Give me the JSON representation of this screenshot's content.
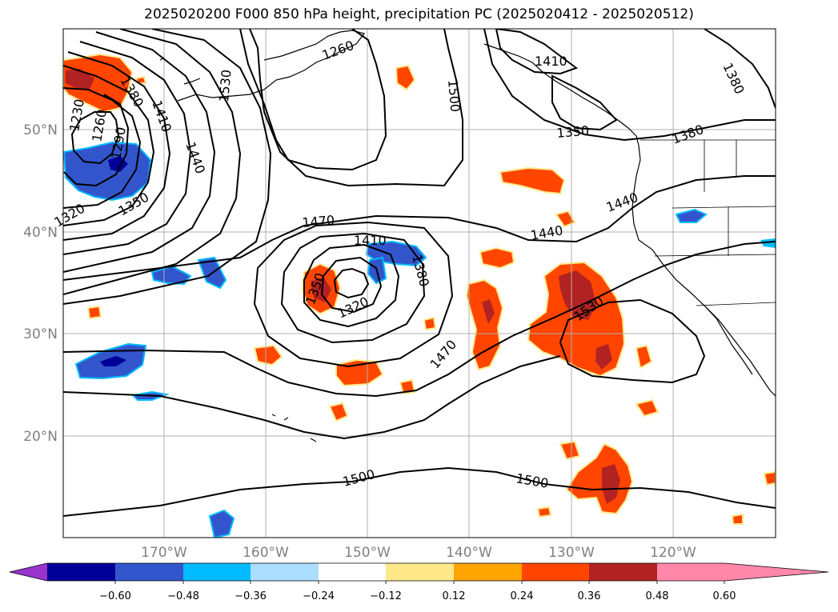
{
  "title": "2025020200 F000 850 hPa height, precipitation PC (2025020412 - 2025020512)",
  "map": {
    "lat_labels": [
      "50°N",
      "40°N",
      "30°N",
      "20°N"
    ],
    "lon_labels": [
      "170°W",
      "160°W",
      "150°W",
      "140°W",
      "130°W",
      "120°W"
    ],
    "contour_labels": [
      {
        "text": "1380"
      },
      {
        "text": "1230"
      },
      {
        "text": "1260"
      },
      {
        "text": "1290"
      },
      {
        "text": "1320"
      },
      {
        "text": "1350"
      },
      {
        "text": "1410"
      },
      {
        "text": "1440"
      },
      {
        "text": "1530"
      },
      {
        "text": "1260"
      },
      {
        "text": "1500"
      },
      {
        "text": "1410"
      },
      {
        "text": "1350"
      },
      {
        "text": "1380"
      },
      {
        "text": "1380"
      },
      {
        "text": "1440"
      },
      {
        "text": "1470"
      },
      {
        "text": "1440"
      },
      {
        "text": "1410"
      },
      {
        "text": "1380"
      },
      {
        "text": "1350"
      },
      {
        "text": "1320"
      },
      {
        "text": "1530"
      },
      {
        "text": "1470"
      },
      {
        "text": "1500"
      },
      {
        "text": "1500"
      }
    ]
  },
  "colorbar": {
    "colors": [
      "#9933cc",
      "#000099",
      "#3355cc",
      "#00bbff",
      "#aaddff",
      "#ffffff",
      "#ffe88a",
      "#ffa500",
      "#ff4500",
      "#b22222",
      "#ff88aa"
    ],
    "tick_labels": [
      "−0.60",
      "−0.48",
      "−0.36",
      "−0.24",
      "−0.12",
      "0.12",
      "0.24",
      "0.36",
      "0.48",
      "0.60"
    ]
  }
}
